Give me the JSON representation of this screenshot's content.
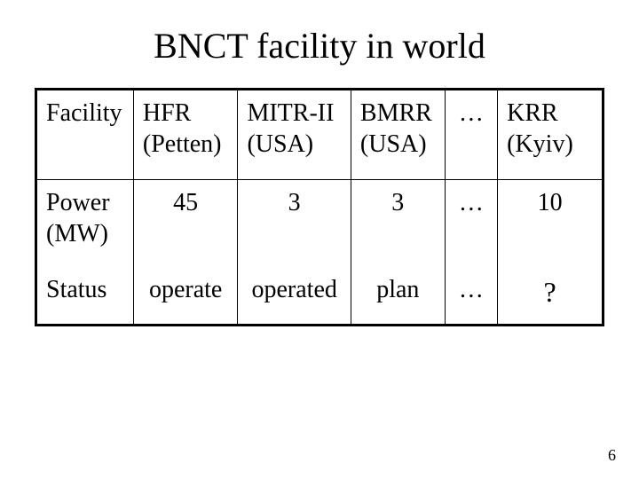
{
  "title": "BNCT facility in world",
  "page_number": "6",
  "table": {
    "type": "table",
    "border_color": "#000000",
    "outer_border_width": 3,
    "inner_border_width": 1,
    "background_color": "#ffffff",
    "text_color": "#000000",
    "font_family": "Times New Roman",
    "cell_fontsize": 28,
    "title_fontsize": 40,
    "columns": [
      {
        "key": "facility",
        "width": 110,
        "align": "left"
      },
      {
        "key": "hfr",
        "width": 118,
        "align": "left"
      },
      {
        "key": "mitr",
        "width": 128,
        "align": "left"
      },
      {
        "key": "bmrr",
        "width": 106,
        "align": "left"
      },
      {
        "key": "dots",
        "width": 60,
        "align": "center"
      },
      {
        "key": "krr",
        "width": 120,
        "align": "left"
      }
    ],
    "header": {
      "facility": "Facility",
      "hfr_line1": "HFR",
      "hfr_line2": "(Petten)",
      "mitr_line1": "MITR-II",
      "mitr_line2": "(USA)",
      "bmrr_line1": "BMRR",
      "bmrr_line2": "(USA)",
      "dots": "…",
      "krr_line1": "KRR",
      "krr_line2": "(Kyiv)"
    },
    "rows": {
      "power": {
        "label_line1": "Power",
        "label_line2": "(MW)",
        "hfr": "45",
        "mitr": "3",
        "bmrr": "3",
        "dots": "…",
        "krr": "10"
      },
      "status": {
        "label": "Status",
        "hfr": "operate",
        "mitr": "operated",
        "bmrr": "plan",
        "dots": "…",
        "krr": "?"
      }
    }
  }
}
